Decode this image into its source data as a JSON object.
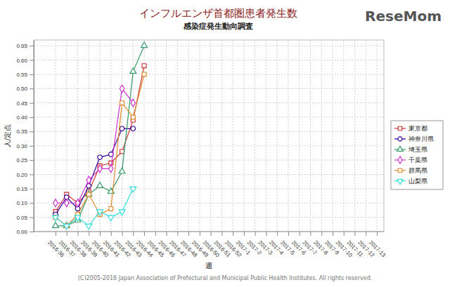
{
  "chart_data": {
    "type": "line",
    "title": "インフルエンザ首都圏患者発生数",
    "subtitle": "感染症発生動向調査",
    "x_label": "週",
    "y_label": "人/定点",
    "annotations": [
      "(C)2005-2016 Japan Association of Prefectural and Municipal Public Health Institutes. All rights reserved.",
      "ReseMom"
    ],
    "categories": [
      "2016-36",
      "2016-37",
      "2016-38",
      "2016-39",
      "2016-40",
      "2016-41",
      "2016-42",
      "2016-43",
      "2016-44",
      "2016-45",
      "2016-46",
      "2016-47",
      "2016-48",
      "2016-49",
      "2016-50",
      "2016-51",
      "2016-52",
      "2017-1",
      "2017-2",
      "2017-3",
      "2017-4",
      "2017-5",
      "2017-6",
      "2017-7",
      "2017-8",
      "2017-9",
      "2017-10",
      "2017-11",
      "2017-12",
      "2017-13"
    ],
    "ylim": [
      0,
      0.67
    ],
    "yticks": [
      {
        "value": 0,
        "label": "0.00"
      },
      0.05,
      {
        "value": 0.1,
        "label": "0.10"
      },
      0.15,
      {
        "value": 0.2,
        "label": "0.20"
      },
      0.25,
      {
        "value": 0.3,
        "label": "0.30"
      },
      0.35,
      {
        "value": 0.4,
        "label": "0.40"
      },
      0.45,
      {
        "value": 0.5,
        "label": "0.50"
      },
      0.55,
      {
        "value": 0.6,
        "label": "0.60"
      },
      0.65
    ],
    "grid": true,
    "legend": "right",
    "series": [
      {
        "name": "東京都",
        "color": "#cc3333",
        "marker": "square",
        "values": [
          0.07,
          0.13,
          0.1,
          0.14,
          0.23,
          0.24,
          0.28,
          0.39,
          0.58,
          null,
          null,
          null,
          null,
          null,
          null,
          null,
          null,
          null,
          null,
          null,
          null,
          null,
          null,
          null,
          null,
          null,
          null,
          null,
          null,
          null
        ]
      },
      {
        "name": "神奈川県",
        "color": "#330099",
        "marker": "circle",
        "values": [
          0.06,
          0.12,
          0.08,
          0.16,
          0.26,
          0.27,
          0.36,
          0.36,
          null,
          null,
          null,
          null,
          null,
          null,
          null,
          null,
          null,
          null,
          null,
          null,
          null,
          null,
          null,
          null,
          null,
          null,
          null,
          null,
          null,
          null
        ]
      },
      {
        "name": "埼玉県",
        "color": "#339966",
        "marker": "triangle",
        "values": [
          0.02,
          0.02,
          0.04,
          0.13,
          0.16,
          0.14,
          0.21,
          0.56,
          0.65,
          null,
          null,
          null,
          null,
          null,
          null,
          null,
          null,
          null,
          null,
          null,
          null,
          null,
          null,
          null,
          null,
          null,
          null,
          null,
          null,
          null
        ]
      },
      {
        "name": "千葉県",
        "color": "#cc33cc",
        "marker": "diamond",
        "values": [
          0.1,
          0.1,
          0.1,
          0.18,
          0.22,
          0.22,
          0.5,
          0.45,
          null,
          null,
          null,
          null,
          null,
          null,
          null,
          null,
          null,
          null,
          null,
          null,
          null,
          null,
          null,
          null,
          null,
          null,
          null,
          null,
          null,
          null
        ]
      },
      {
        "name": "群馬県",
        "color": "#e08a2c",
        "marker": "square",
        "values": [
          0.05,
          0.02,
          0.06,
          0.13,
          0.06,
          0.08,
          0.45,
          0.4,
          0.55,
          null,
          null,
          null,
          null,
          null,
          null,
          null,
          null,
          null,
          null,
          null,
          null,
          null,
          null,
          null,
          null,
          null,
          null,
          null,
          null,
          null
        ]
      },
      {
        "name": "山梨県",
        "color": "#33dddd",
        "marker": "triangle-down",
        "values": [
          0.05,
          0.02,
          0.05,
          0.02,
          0.07,
          0.05,
          0.07,
          0.15,
          null,
          null,
          null,
          null,
          null,
          null,
          null,
          null,
          null,
          null,
          null,
          null,
          null,
          null,
          null,
          null,
          null,
          null,
          null,
          null,
          null,
          null
        ]
      }
    ]
  }
}
